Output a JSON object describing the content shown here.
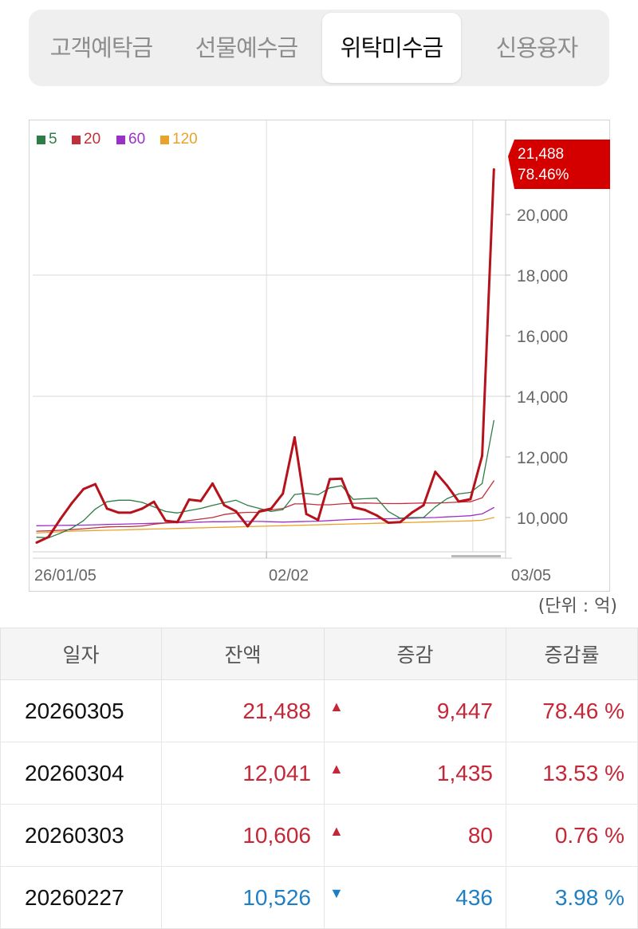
{
  "tabs": [
    {
      "label": "고객예탁금",
      "active": false
    },
    {
      "label": "선물예수금",
      "active": false
    },
    {
      "label": "위탁미수금",
      "active": true
    },
    {
      "label": "신용융자",
      "active": false
    }
  ],
  "chart_data": {
    "type": "line",
    "legend": [
      "5",
      "20",
      "60",
      "120"
    ],
    "legend_placement": "top-left",
    "x_ticks": [
      {
        "label": "26/01/05",
        "index": 0
      },
      {
        "label": "02/02",
        "index": 19.6
      },
      {
        "label": "03/05",
        "index": 39
      }
    ],
    "y_ticks": [
      10000,
      12000,
      14000,
      16000,
      18000,
      20000
    ],
    "y_tick_labels": [
      "10,000",
      "12,000",
      "14,000",
      "16,000",
      "18,000",
      "20,000"
    ],
    "ylim": [
      8800,
      22200
    ],
    "y_axis_side": "right",
    "grid": true,
    "last_label": {
      "value": "21,488",
      "change": "78.46%"
    },
    "colors": {
      "balance": "#b5121b",
      "ma5": "#2e7d46",
      "ma20": "#c0303a",
      "ma60": "#9b30c8",
      "ma120": "#e8a32a",
      "label_bg": "#d40000"
    },
    "series": [
      {
        "key": "balance",
        "values": [
          9175,
          9354,
          9937,
          10475,
          10942,
          11103,
          10296,
          10161,
          10161,
          10296,
          10520,
          9892,
          9848,
          10592,
          10547,
          11121,
          10404,
          10206,
          9713,
          10206,
          10296,
          10789,
          12646,
          10117,
          9919,
          11265,
          11283,
          10341,
          10251,
          10072,
          9830,
          9848,
          10161,
          10404,
          11507,
          11058,
          10526,
          10606,
          12041,
          21488
        ]
      },
      {
        "key": "ma5",
        "name": "5",
        "values": [
          9350,
          9330,
          9480,
          9650,
          9900,
          10280,
          10520,
          10570,
          10570,
          10500,
          10350,
          10200,
          10150,
          10230,
          10300,
          10400,
          10490,
          10570,
          10400,
          10300,
          10200,
          10260,
          10760,
          10800,
          10750,
          10980,
          11050,
          10600,
          10620,
          10640,
          10200,
          9980,
          10000,
          10000,
          10350,
          10620,
          10780,
          10830,
          11120,
          13200
        ]
      },
      {
        "key": "ma20",
        "name": "20",
        "values": [
          9550,
          9560,
          9580,
          9600,
          9630,
          9660,
          9690,
          9700,
          9700,
          9720,
          9780,
          9820,
          9850,
          9900,
          9950,
          10000,
          10100,
          10150,
          10170,
          10170,
          10250,
          10300,
          10450,
          10450,
          10420,
          10420,
          10450,
          10470,
          10480,
          10470,
          10460,
          10460,
          10470,
          10480,
          10480,
          10490,
          10510,
          10520,
          10650,
          11210
        ]
      },
      {
        "key": "ma60",
        "name": "60",
        "values": [
          9730,
          9735,
          9740,
          9745,
          9750,
          9760,
          9770,
          9780,
          9790,
          9800,
          9810,
          9820,
          9830,
          9840,
          9850,
          9860,
          9860,
          9870,
          9870,
          9870,
          9860,
          9850,
          9860,
          9870,
          9880,
          9900,
          9920,
          9940,
          9950,
          9960,
          9960,
          9970,
          9980,
          9990,
          10000,
          10020,
          10040,
          10060,
          10120,
          10330
        ]
      },
      {
        "key": "ma120",
        "name": "120",
        "values": [
          9490,
          9510,
          9530,
          9550,
          9560,
          9570,
          9580,
          9590,
          9600,
          9610,
          9620,
          9630,
          9640,
          9650,
          9660,
          9670,
          9680,
          9690,
          9700,
          9710,
          9720,
          9730,
          9740,
          9750,
          9760,
          9770,
          9780,
          9790,
          9800,
          9810,
          9820,
          9830,
          9840,
          9850,
          9860,
          9870,
          9880,
          9890,
          9910,
          10000
        ]
      }
    ]
  },
  "unit": "(단위 : 억)",
  "table": {
    "headers": [
      "일자",
      "잔액",
      "증감",
      "증감률"
    ],
    "rows": [
      {
        "date": "20260305",
        "balance": "21,488",
        "dir": "up",
        "arrow": "▲",
        "change": "9,447",
        "rate": "78.46 %"
      },
      {
        "date": "20260304",
        "balance": "12,041",
        "dir": "up",
        "arrow": "▲",
        "change": "1,435",
        "rate": "13.53 %"
      },
      {
        "date": "20260303",
        "balance": "10,606",
        "dir": "up",
        "arrow": "▲",
        "change": "80",
        "rate": "0.76 %"
      },
      {
        "date": "20260227",
        "balance": "10,526",
        "dir": "down",
        "arrow": "▼",
        "change": "436",
        "rate": "3.98 %"
      }
    ]
  }
}
